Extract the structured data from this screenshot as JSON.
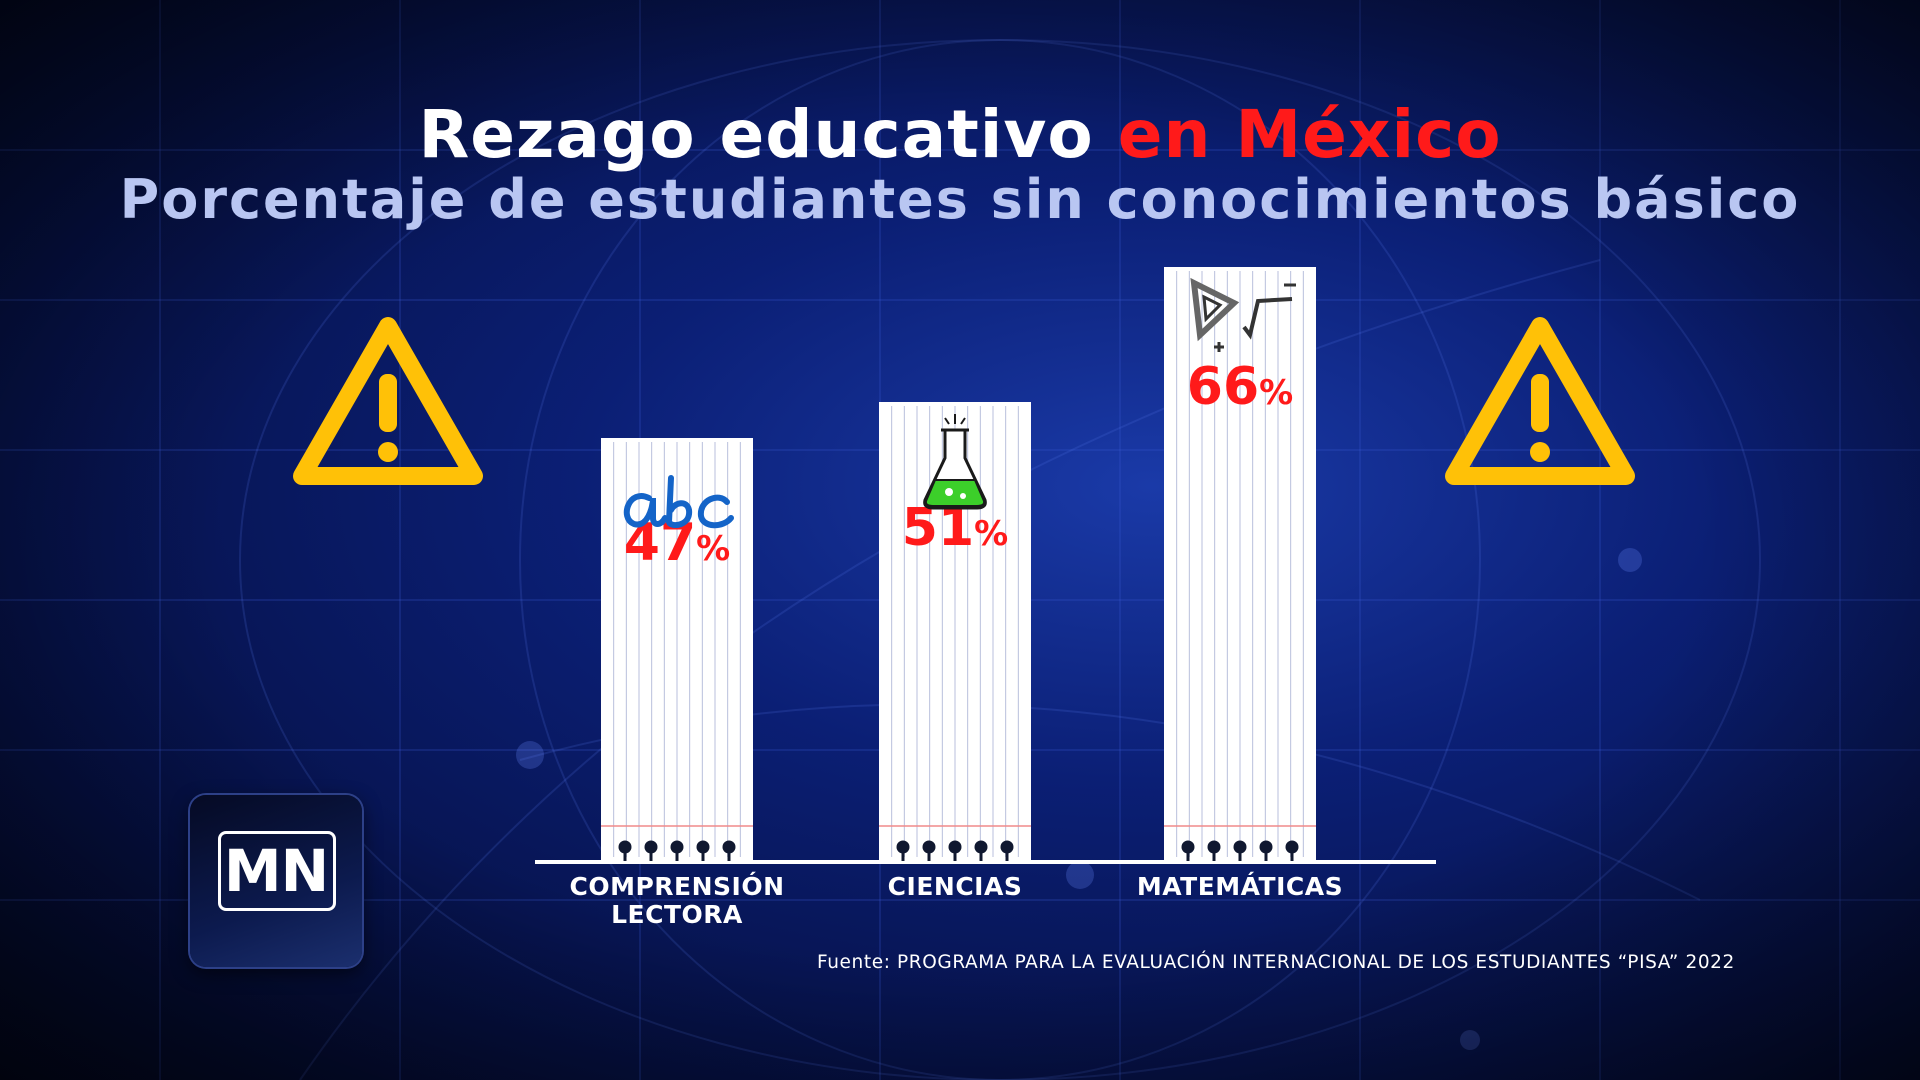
{
  "title": {
    "main": "Rezago educativo",
    "accent": "en México"
  },
  "subtitle": "Porcentaje de estudiantes sin conocimientos básico",
  "source": "Fuente: PROGRAMA PARA LA EVALUACIÓN INTERNACIONAL DE LOS ESTUDIANTES “PISA” 2022",
  "logo": "MN",
  "colors": {
    "value_label": "#ff1a1a",
    "title_accent": "#ff1a1a",
    "warning": "#ffc107",
    "bar": "#ffffff"
  },
  "icons": [
    "warning-triangle-icon",
    "abc-cursive-icon",
    "flask-icon",
    "geometry-ruler-icon"
  ],
  "chart_data": {
    "type": "bar",
    "categories": [
      "COMPRENSIÓN LECTORA",
      "CIENCIAS",
      "MATEMÁTICAS"
    ],
    "category_lines": [
      [
        "COMPRENSIÓN",
        "LECTORA"
      ],
      [
        "CIENCIAS"
      ],
      [
        "MATEMÁTICAS"
      ]
    ],
    "values": [
      47,
      51,
      66
    ],
    "value_labels": [
      "47",
      "51",
      "66"
    ],
    "unit": "%",
    "ylim": [
      0,
      100
    ],
    "grid": false,
    "legend": "none"
  }
}
